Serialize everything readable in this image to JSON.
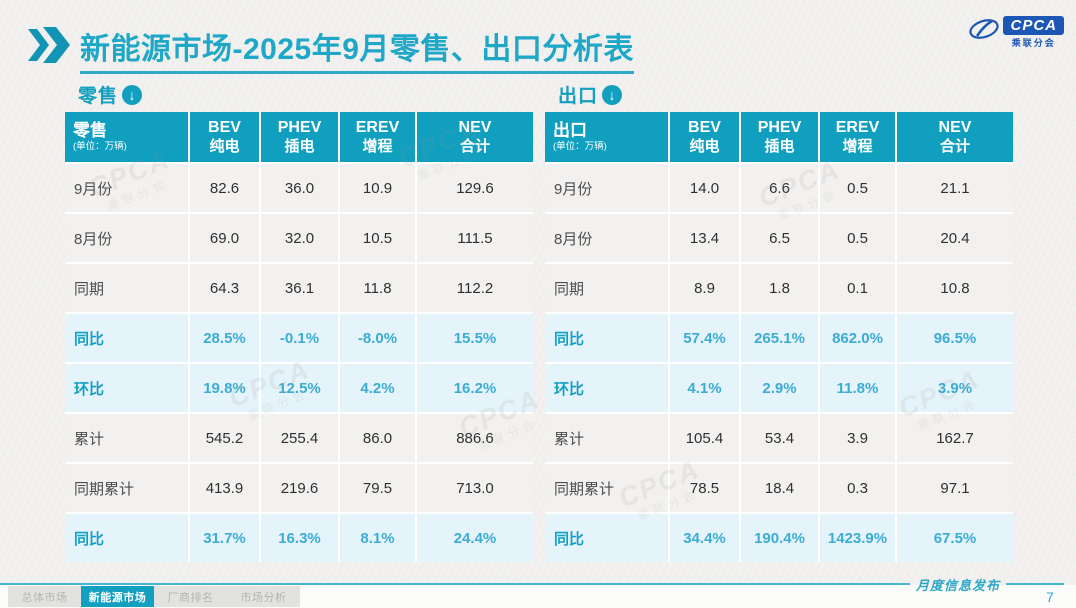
{
  "header": {
    "title": "新能源市场-2025年9月零售、出口分析表"
  },
  "logo": {
    "cpca": "CPCA",
    "sub": "乘联分会"
  },
  "icons": {
    "section_arrow": "↓"
  },
  "watermark": {
    "text": "CPCA",
    "sub": "乘联分会"
  },
  "retail": {
    "section_label": "零售",
    "head_label": "零售",
    "unit": "(单位：万辆)",
    "columns": [
      {
        "en": "BEV",
        "cn": "纯电"
      },
      {
        "en": "PHEV",
        "cn": "插电"
      },
      {
        "en": "EREV",
        "cn": "增程"
      },
      {
        "en": "NEV",
        "cn": "合计"
      }
    ],
    "rows": [
      {
        "label": "9月份",
        "pct": false,
        "values": [
          "82.6",
          "36.0",
          "10.9",
          "129.6"
        ]
      },
      {
        "label": "8月份",
        "pct": false,
        "values": [
          "69.0",
          "32.0",
          "10.5",
          "111.5"
        ]
      },
      {
        "label": "同期",
        "pct": false,
        "values": [
          "64.3",
          "36.1",
          "11.8",
          "112.2"
        ]
      },
      {
        "label": "同比",
        "pct": true,
        "values": [
          "28.5%",
          "-0.1%",
          "-8.0%",
          "15.5%"
        ]
      },
      {
        "label": "环比",
        "pct": true,
        "values": [
          "19.8%",
          "12.5%",
          "4.2%",
          "16.2%"
        ]
      },
      {
        "label": "累计",
        "pct": false,
        "values": [
          "545.2",
          "255.4",
          "86.0",
          "886.6"
        ]
      },
      {
        "label": "同期累计",
        "pct": false,
        "values": [
          "413.9",
          "219.6",
          "79.5",
          "713.0"
        ]
      },
      {
        "label": "同比",
        "pct": true,
        "values": [
          "31.7%",
          "16.3%",
          "8.1%",
          "24.4%"
        ]
      }
    ]
  },
  "export": {
    "section_label": "出口",
    "head_label": "出口",
    "unit": "(单位：万辆)",
    "columns": [
      {
        "en": "BEV",
        "cn": "纯电"
      },
      {
        "en": "PHEV",
        "cn": "插电"
      },
      {
        "en": "EREV",
        "cn": "增程"
      },
      {
        "en": "NEV",
        "cn": "合计"
      }
    ],
    "rows": [
      {
        "label": "9月份",
        "pct": false,
        "values": [
          "14.0",
          "6.6",
          "0.5",
          "21.1"
        ]
      },
      {
        "label": "8月份",
        "pct": false,
        "values": [
          "13.4",
          "6.5",
          "0.5",
          "20.4"
        ]
      },
      {
        "label": "同期",
        "pct": false,
        "values": [
          "8.9",
          "1.8",
          "0.1",
          "10.8"
        ]
      },
      {
        "label": "同比",
        "pct": true,
        "values": [
          "57.4%",
          "265.1%",
          "862.0%",
          "96.5%"
        ]
      },
      {
        "label": "环比",
        "pct": true,
        "values": [
          "4.1%",
          "2.9%",
          "11.8%",
          "3.9%"
        ]
      },
      {
        "label": "累计",
        "pct": false,
        "values": [
          "105.4",
          "53.4",
          "3.9",
          "162.7"
        ]
      },
      {
        "label": "同期累计",
        "pct": false,
        "values": [
          "78.5",
          "18.4",
          "0.3",
          "97.1"
        ]
      },
      {
        "label": "同比",
        "pct": true,
        "values": [
          "34.4%",
          "190.4%",
          "1423.9%",
          "67.5%"
        ]
      }
    ]
  },
  "footer": {
    "caption": "月度信息发布",
    "page": "7",
    "tabs": [
      {
        "label": "总体市场",
        "active": false
      },
      {
        "label": "新能源市场",
        "active": true
      },
      {
        "label": "厂商排名",
        "active": false
      },
      {
        "label": "市场分析",
        "active": false
      }
    ]
  },
  "colors": {
    "teal": "#129fc0",
    "title_teal": "#1ea7c7",
    "pct_blue": "#3badd4",
    "logo_blue": "#1c57b5"
  }
}
